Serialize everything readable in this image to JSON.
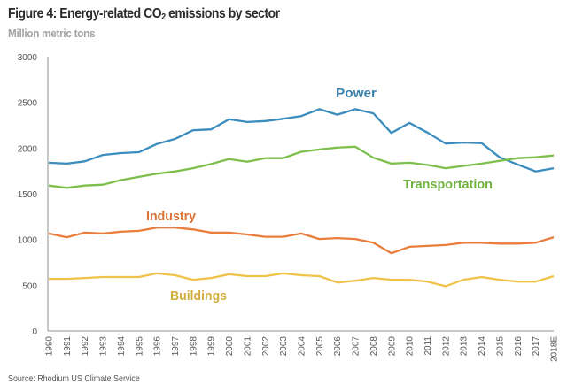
{
  "header": {
    "title_prefix": "Figure 4: Energy-related CO",
    "title_sub": "2",
    "title_suffix": " emissions by sector",
    "subtitle": "Million metric tons"
  },
  "footer": {
    "source": "Source: Rhodium US Climate Service"
  },
  "chart_data": {
    "type": "line",
    "title": "Figure 4: Energy-related CO2 emissions by sector",
    "subtitle": "Million metric tons",
    "xlabel": "",
    "ylabel": "Million metric tons",
    "ylim": [
      0,
      3000
    ],
    "yticks": [
      0,
      500,
      1000,
      1500,
      2000,
      2500,
      3000
    ],
    "grid": false,
    "legend": "inline labels",
    "x": [
      "1990",
      "1991",
      "1992",
      "1993",
      "1994",
      "1995",
      "1996",
      "1997",
      "1998",
      "1999",
      "2000",
      "2001",
      "2002",
      "2003",
      "2004",
      "2005",
      "2006",
      "2007",
      "2008",
      "2009",
      "2010",
      "2011",
      "2012",
      "2013",
      "2014",
      "2015",
      "2016",
      "2017",
      "2018E"
    ],
    "series": [
      {
        "name": "Power",
        "color": "#3a8dbd",
        "values": [
          1840,
          1830,
          1855,
          1925,
          1945,
          1955,
          2045,
          2100,
          2195,
          2205,
          2315,
          2285,
          2295,
          2320,
          2350,
          2425,
          2365,
          2425,
          2380,
          2165,
          2275,
          2170,
          2050,
          2060,
          2055,
          1900,
          1820,
          1745,
          1780
        ]
      },
      {
        "name": "Transportation",
        "color": "#7cbf4a",
        "values": [
          1590,
          1565,
          1590,
          1600,
          1650,
          1685,
          1720,
          1745,
          1780,
          1825,
          1880,
          1850,
          1890,
          1890,
          1960,
          1985,
          2005,
          2015,
          1895,
          1830,
          1840,
          1815,
          1780,
          1805,
          1830,
          1860,
          1890,
          1900,
          1920
        ]
      },
      {
        "name": "Industry",
        "color": "#ea7d3c",
        "values": [
          1065,
          1025,
          1075,
          1065,
          1085,
          1095,
          1130,
          1130,
          1110,
          1075,
          1075,
          1055,
          1030,
          1030,
          1065,
          1005,
          1015,
          1005,
          965,
          850,
          920,
          930,
          940,
          965,
          965,
          955,
          955,
          965,
          1025
        ]
      },
      {
        "name": "Buildings",
        "color": "#efc34a",
        "values": [
          570,
          570,
          580,
          590,
          590,
          590,
          630,
          610,
          560,
          580,
          620,
          600,
          600,
          630,
          610,
          600,
          530,
          550,
          580,
          560,
          560,
          540,
          490,
          560,
          590,
          560,
          540,
          540,
          600
        ]
      }
    ],
    "labels": [
      {
        "text": "Power",
        "color": "#3a82ad"
      },
      {
        "text": "Transportation",
        "color": "#6fb33e"
      },
      {
        "text": "Industry",
        "color": "#dd7234"
      },
      {
        "text": "Buildings",
        "color": "#d3ad3e"
      }
    ],
    "source": "Source: Rhodium US Climate Service"
  }
}
